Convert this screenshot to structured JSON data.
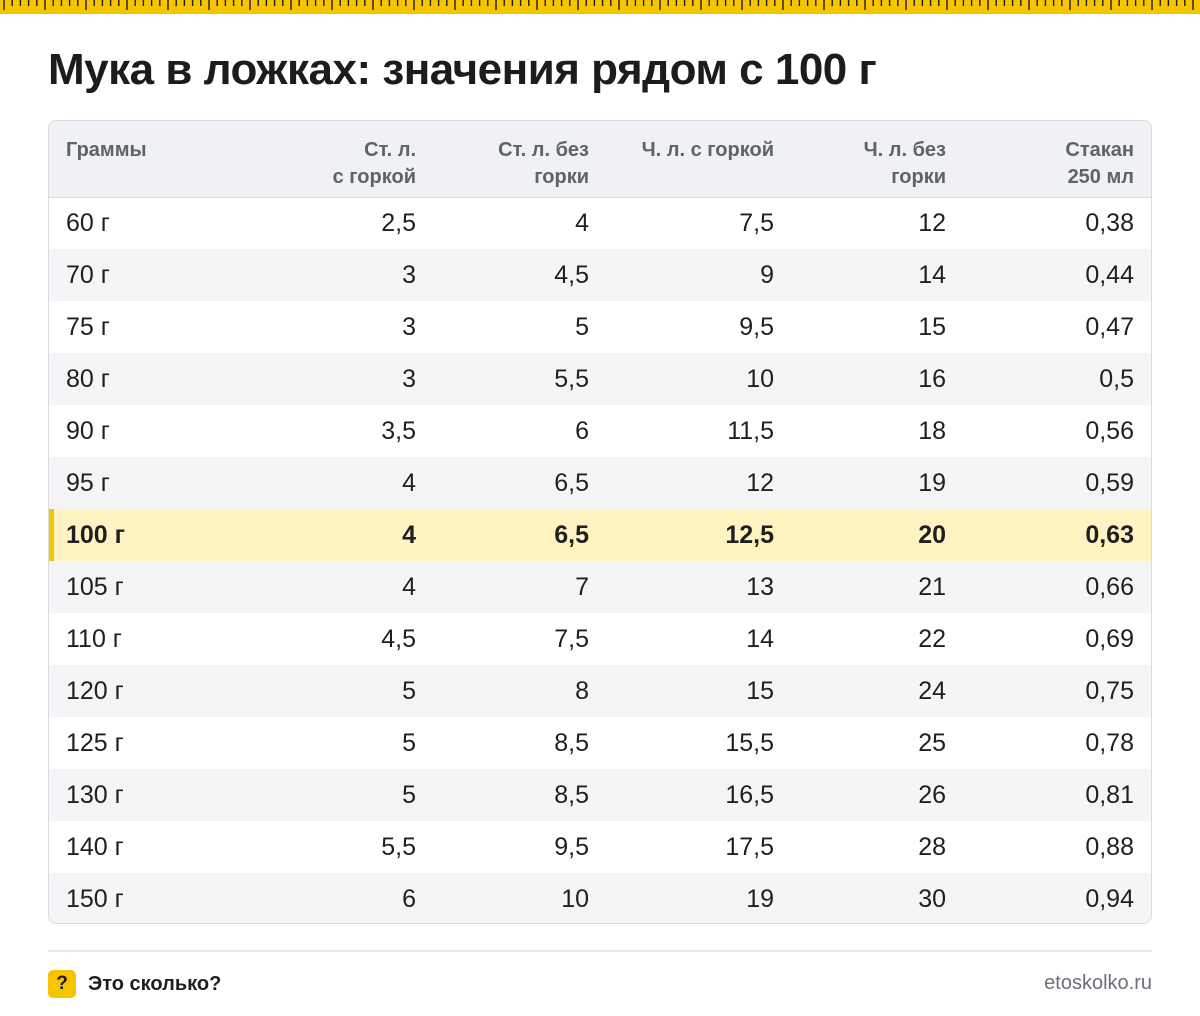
{
  "title": "Мука в ложках: значения рядом с 100 г",
  "accent_color": "#f6c500",
  "highlight_row_color": "#fff3c2",
  "table": {
    "headers": [
      {
        "line1": "Граммы",
        "line2": ""
      },
      {
        "line1": "Ст. л.",
        "line2": "с горкой"
      },
      {
        "line1": "Ст. л. без",
        "line2": "горки"
      },
      {
        "line1": "Ч. л. с горкой",
        "line2": ""
      },
      {
        "line1": "Ч. л. без",
        "line2": "горки"
      },
      {
        "line1": "Стакан",
        "line2": "250 мл"
      }
    ],
    "highlighted_row_index": 6,
    "rows": [
      [
        "60 г",
        "2,5",
        "4",
        "7,5",
        "12",
        "0,38"
      ],
      [
        "70 г",
        "3",
        "4,5",
        "9",
        "14",
        "0,44"
      ],
      [
        "75 г",
        "3",
        "5",
        "9,5",
        "15",
        "0,47"
      ],
      [
        "80 г",
        "3",
        "5,5",
        "10",
        "16",
        "0,5"
      ],
      [
        "90 г",
        "3,5",
        "6",
        "11,5",
        "18",
        "0,56"
      ],
      [
        "95 г",
        "4",
        "6,5",
        "12",
        "19",
        "0,59"
      ],
      [
        "100 г",
        "4",
        "6,5",
        "12,5",
        "20",
        "0,63"
      ],
      [
        "105 г",
        "4",
        "7",
        "13",
        "21",
        "0,66"
      ],
      [
        "110 г",
        "4,5",
        "7,5",
        "14",
        "22",
        "0,69"
      ],
      [
        "120 г",
        "5",
        "8",
        "15",
        "24",
        "0,75"
      ],
      [
        "125 г",
        "5",
        "8,5",
        "15,5",
        "25",
        "0,78"
      ],
      [
        "130 г",
        "5",
        "8,5",
        "16,5",
        "26",
        "0,81"
      ],
      [
        "140 г",
        "5,5",
        "9,5",
        "17,5",
        "28",
        "0,88"
      ],
      [
        "150 г",
        "6",
        "10",
        "19",
        "30",
        "0,94"
      ]
    ]
  },
  "footer": {
    "icon_glyph": "?",
    "brand_name": "Это сколько?",
    "site": "etoskolko.ru"
  }
}
